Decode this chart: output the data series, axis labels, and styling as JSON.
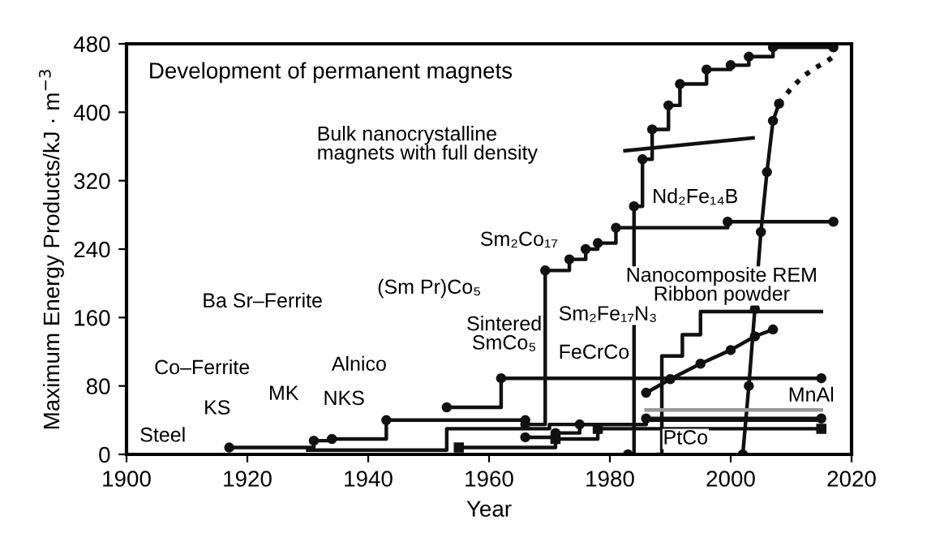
{
  "chart_data": {
    "type": "line",
    "title": "Development of permanent magnets",
    "xlabel": "Year",
    "ylabel": "Maximum Energy Products/kJ · m$^{−3}$",
    "xlim": [
      1900,
      2020
    ],
    "ylim": [
      0,
      480
    ],
    "xticks": [
      1900,
      1920,
      1940,
      1960,
      1980,
      2000,
      2020
    ],
    "yticks": [
      0,
      80,
      160,
      240,
      320,
      400,
      480
    ],
    "grid": false,
    "legend": false,
    "series": [
      {
        "type": "step",
        "color": "#111111",
        "marker": "circle",
        "line_style": "solid",
        "x": [
          1917,
          1931,
          1934,
          1943,
          1966
        ],
        "values": [
          8,
          16,
          18,
          40,
          40
        ]
      },
      {
        "type": "step",
        "color": "#111111",
        "marker": "none",
        "line_style": "solid",
        "x": [
          1930,
          1953,
          1970,
          1986,
          2015
        ],
        "values": [
          5,
          30,
          35,
          40,
          40
        ]
      },
      {
        "type": "step",
        "color": "#111111",
        "marker": "circle",
        "line_style": "solid",
        "x": [
          1953,
          1962,
          2015
        ],
        "values": [
          55,
          89,
          89
        ]
      },
      {
        "type": "step",
        "color": "#111111",
        "marker": "circle",
        "line_style": "solid",
        "x": [
          1966,
          1969.3,
          1973.3,
          1976,
          1978,
          1981,
          1999.5,
          2017
        ],
        "values": [
          35,
          215,
          228,
          240,
          247,
          265,
          272,
          272
        ]
      },
      {
        "type": "step",
        "color": "#111111",
        "marker": "circle",
        "line_style": "solid",
        "x": [
          1983,
          1984,
          1985.4,
          1987,
          1989.7,
          1991.6,
          1996,
          2000,
          2003,
          2007,
          2017
        ],
        "values": [
          0,
          290,
          345,
          380,
          408,
          433,
          450,
          455,
          465,
          476,
          476
        ]
      },
      {
        "type": "step",
        "color": "#111111",
        "marker": "square",
        "line_style": "solid",
        "x": [
          1955,
          1971,
          1978,
          2015
        ],
        "values": [
          8,
          18,
          30,
          30
        ]
      },
      {
        "type": "step",
        "color": "#111111",
        "marker": "circle",
        "line_style": "solid",
        "x": [
          1966,
          1971,
          1975,
          1986,
          2015
        ],
        "values": [
          20,
          25,
          35,
          42,
          42
        ]
      },
      {
        "type": "step",
        "color": "#111111",
        "marker": "none",
        "line_style": "solid",
        "x": [
          1988,
          1988.6,
          1992,
          1995,
          2015
        ],
        "values": [
          0,
          115,
          140,
          167,
          167
        ]
      },
      {
        "color": "#111111",
        "marker": "circle",
        "line_style": "solid",
        "x": [
          1986,
          1990,
          1995,
          2000,
          2004,
          2007
        ],
        "values": [
          72,
          88,
          106,
          122,
          138,
          146
        ]
      },
      {
        "color": "#111111",
        "marker": "none",
        "line_style": "solid",
        "x": [
          1982.5,
          2003.7
        ],
        "values": [
          355,
          370
        ]
      },
      {
        "color": "#111111",
        "marker": "circle",
        "line_style": "solid",
        "x": [
          2002,
          2003,
          2004,
          2005,
          2006,
          2007,
          2008
        ],
        "values": [
          0,
          80,
          170,
          260,
          330,
          390,
          410
        ]
      },
      {
        "color": "#111111",
        "marker": "none",
        "line_style": "dotted",
        "x": [
          2008,
          2010,
          2012,
          2014,
          2016,
          2017
        ],
        "values": [
          410,
          428,
          442,
          452,
          460,
          465
        ]
      },
      {
        "color": "#999999",
        "marker": "none",
        "line_style": "solid",
        "x": [
          1986,
          2015
        ],
        "values": [
          52,
          52
        ]
      }
    ],
    "annotations": [
      "Bulk nanocrystalline\nmagnets with full density",
      "Nd₂Fe₁₄B",
      "Sm₂Co₁₇",
      "(Sm Pr)Co₅",
      "Sintered\nSmCo₅",
      "Sm₂Fe₁₇N₃",
      "FeCrCo",
      "Nanocomposite REM\nRibbon powder",
      "MnAl",
      "PtCo",
      "Ba Sr–Ferrite",
      "Co–Ferrite",
      "Alnico",
      "MK",
      "NKS",
      "KS",
      "Steel"
    ]
  }
}
